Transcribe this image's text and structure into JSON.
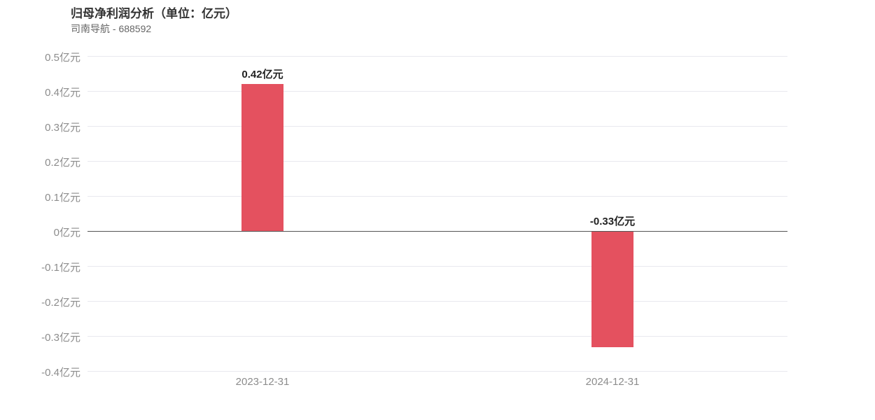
{
  "header": {
    "title": "归母净利润分析（单位：亿元）",
    "subtitle": "司南导航 - 688592"
  },
  "chart_data": {
    "type": "bar",
    "title": "归母净利润分析（单位：亿元）",
    "subtitle": "司南导航 - 688592",
    "categories": [
      "2023-12-31",
      "2024-12-31"
    ],
    "values": [
      0.42,
      -0.33
    ],
    "data_labels": [
      "0.42亿元",
      "-0.33亿元"
    ],
    "xlabel": "",
    "ylabel": "",
    "ylim": [
      -0.4,
      0.5
    ],
    "ytick_step": 0.1,
    "ytick_labels": [
      "0.5亿元",
      "0.4亿元",
      "0.3亿元",
      "0.2亿元",
      "0.1亿元",
      "0亿元",
      "-0.1亿元",
      "-0.2亿元",
      "-0.3亿元",
      "-0.4亿元"
    ],
    "grid": true,
    "legend_position": "none",
    "colors": {
      "bar": "#e4515f",
      "grid_line": "#e9e9ee",
      "zero_line": "#555555",
      "title_text": "#333333",
      "subtitle_text": "#666666",
      "axis_text": "#8c8c8c",
      "data_label_text": "#222222",
      "background": "#ffffff"
    }
  }
}
